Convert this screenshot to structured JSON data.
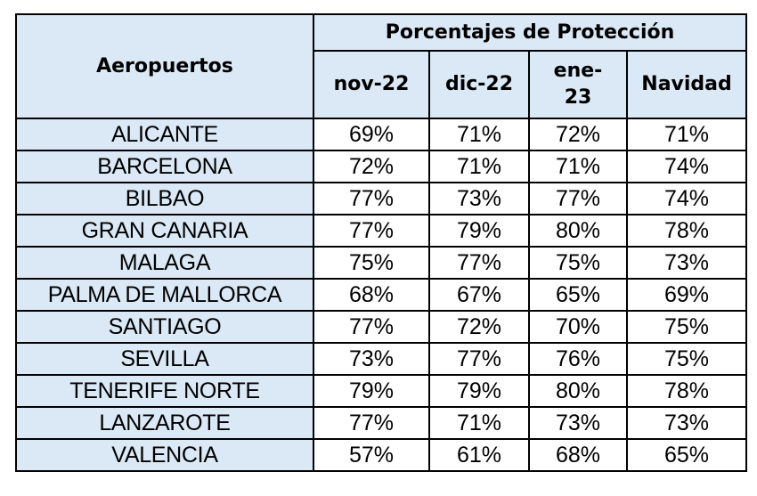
{
  "table": {
    "airports_header": "Aeropuertos",
    "group_header": "Porcentajes de Protección",
    "columns": [
      "nov-22",
      "dic-22",
      "ene-\n23",
      "Navidad"
    ],
    "rows": [
      {
        "airport": "ALICANTE",
        "values": [
          "69%",
          "71%",
          "72%",
          "71%"
        ]
      },
      {
        "airport": "BARCELONA",
        "values": [
          "72%",
          "71%",
          "71%",
          "74%"
        ]
      },
      {
        "airport": "BILBAO",
        "values": [
          "77%",
          "73%",
          "77%",
          "74%"
        ]
      },
      {
        "airport": "GRAN CANARIA",
        "values": [
          "77%",
          "79%",
          "80%",
          "78%"
        ]
      },
      {
        "airport": "MALAGA",
        "values": [
          "75%",
          "77%",
          "75%",
          "73%"
        ]
      },
      {
        "airport": "PALMA DE MALLORCA",
        "values": [
          "68%",
          "67%",
          "65%",
          "69%"
        ]
      },
      {
        "airport": "SANTIAGO",
        "values": [
          "77%",
          "72%",
          "70%",
          "75%"
        ]
      },
      {
        "airport": "SEVILLA",
        "values": [
          "73%",
          "77%",
          "76%",
          "75%"
        ]
      },
      {
        "airport": "TENERIFE NORTE",
        "values": [
          "79%",
          "79%",
          "80%",
          "78%"
        ]
      },
      {
        "airport": "LANZAROTE",
        "values": [
          "77%",
          "71%",
          "73%",
          "73%"
        ]
      },
      {
        "airport": "VALENCIA",
        "values": [
          "57%",
          "61%",
          "68%",
          "65%"
        ]
      }
    ]
  },
  "chart_data": {
    "type": "table",
    "title": "",
    "columns": [
      "Aeropuertos",
      "nov-22",
      "dic-22",
      "ene-23",
      "Navidad"
    ],
    "group_header": "Porcentajes de Protección",
    "rows": [
      [
        "ALICANTE",
        69,
        71,
        72,
        71
      ],
      [
        "BARCELONA",
        72,
        71,
        71,
        74
      ],
      [
        "BILBAO",
        77,
        73,
        77,
        74
      ],
      [
        "GRAN CANARIA",
        77,
        79,
        80,
        78
      ],
      [
        "MALAGA",
        75,
        77,
        75,
        73
      ],
      [
        "PALMA DE MALLORCA",
        68,
        67,
        65,
        69
      ],
      [
        "SANTIAGO",
        77,
        72,
        70,
        75
      ],
      [
        "SEVILLA",
        73,
        77,
        76,
        75
      ],
      [
        "TENERIFE NORTE",
        79,
        79,
        80,
        78
      ],
      [
        "LANZAROTE",
        77,
        71,
        73,
        73
      ],
      [
        "VALENCIA",
        57,
        61,
        68,
        65
      ]
    ],
    "unit": "%"
  },
  "colors": {
    "header_bg": "#dbe9f6",
    "airport_bg": "#dbe9f6",
    "value_bg": "#ffffff",
    "border": "#000000"
  }
}
